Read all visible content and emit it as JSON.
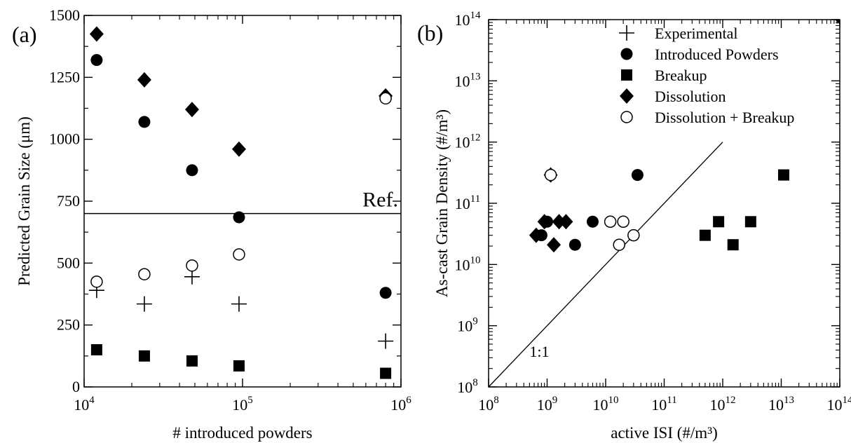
{
  "chart_data": [
    {
      "type": "scatter",
      "panel_label": "(a)",
      "title": "",
      "xlabel": "# introduced powders",
      "ylabel": "Predicted Grain Size (μm)",
      "xscale": "log",
      "xlim": [
        10000,
        1000000
      ],
      "ylim": [
        0,
        1500
      ],
      "xticks": [
        {
          "value": 10000,
          "base": "10",
          "exp": "4"
        },
        {
          "value": 100000,
          "base": "10",
          "exp": "5"
        },
        {
          "value": 1000000,
          "base": "10",
          "exp": "6"
        }
      ],
      "yticks": [
        {
          "value": 0,
          "label": "0"
        },
        {
          "value": 250,
          "label": "250"
        },
        {
          "value": 500,
          "label": "500"
        },
        {
          "value": 750,
          "label": "750"
        },
        {
          "value": 1000,
          "label": "1000"
        },
        {
          "value": 1250,
          "label": "1250"
        },
        {
          "value": 1500,
          "label": "1500"
        }
      ],
      "reference_line": {
        "y": 700,
        "label": "Ref."
      },
      "grid": false,
      "series": [
        {
          "name": "Experimental",
          "marker": "plus",
          "x": [
            12000,
            24000,
            48000,
            95000,
            800000
          ],
          "y": [
            390,
            335,
            445,
            335,
            185
          ]
        },
        {
          "name": "Introduced Powders",
          "marker": "filled-circle",
          "x": [
            12000,
            24000,
            48000,
            95000,
            800000
          ],
          "y": [
            1320,
            1070,
            875,
            685,
            380
          ]
        },
        {
          "name": "Breakup",
          "marker": "filled-square",
          "x": [
            12000,
            24000,
            48000,
            95000,
            800000
          ],
          "y": [
            150,
            125,
            105,
            85,
            55
          ]
        },
        {
          "name": "Dissolution",
          "marker": "filled-diamond",
          "x": [
            12000,
            24000,
            48000,
            95000,
            800000
          ],
          "y": [
            1425,
            1240,
            1120,
            960,
            1175
          ]
        },
        {
          "name": "Dissolution + Breakup",
          "marker": "open-circle",
          "x": [
            12000,
            24000,
            48000,
            95000,
            800000
          ],
          "y": [
            425,
            455,
            490,
            535,
            1165
          ]
        }
      ]
    },
    {
      "type": "scatter",
      "panel_label": "(b)",
      "title": "",
      "xlabel": "active ISI (#/m³)",
      "ylabel": "As-cast Grain Density (#/m³)",
      "xscale": "log",
      "yscale": "log",
      "xlim": [
        100000000,
        100000000000000
      ],
      "ylim": [
        100000000,
        100000000000000
      ],
      "ticks_exp": [
        "8",
        "9",
        "10",
        "11",
        "12",
        "13",
        "14"
      ],
      "tick_base": "10",
      "identity_line_label": "1:1",
      "legend_position": "top-right",
      "grid": false,
      "series": [
        {
          "name": "Experimental",
          "marker": "plus",
          "x": [],
          "y": []
        },
        {
          "name": "Introduced Powders",
          "marker": "filled-circle",
          "x": [
            800000000,
            1000000000,
            3000000000,
            6000000000,
            35000000000
          ],
          "y": [
            30000000000,
            50000000000,
            21000000000,
            50000000000,
            290000000000
          ]
        },
        {
          "name": "Breakup",
          "marker": "filled-square",
          "x": [
            500000000000,
            850000000000,
            1500000000000,
            3000000000000,
            11000000000000
          ],
          "y": [
            30000000000,
            50000000000,
            21000000000,
            50000000000,
            290000000000
          ]
        },
        {
          "name": "Dissolution",
          "marker": "filled-diamond",
          "x": [
            650000000,
            900000000,
            1150000000,
            1300000000,
            1600000000,
            2100000000
          ],
          "y": [
            30000000000,
            50000000000,
            290000000000,
            21000000000,
            50000000000,
            50000000000
          ]
        },
        {
          "name": "Dissolution + Breakup",
          "marker": "open-circle",
          "x": [
            1150000000,
            12000000000,
            17000000000,
            20000000000,
            30000000000
          ],
          "y": [
            290000000000,
            50000000000,
            21000000000,
            50000000000,
            30000000000
          ]
        }
      ]
    }
  ]
}
